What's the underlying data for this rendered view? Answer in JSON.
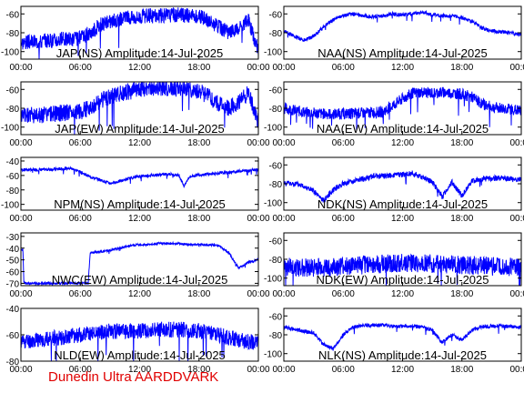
{
  "footer": "Dunedin Ultra AARDDVARK",
  "colors": {
    "signal": "#0000ff",
    "axes": "#000000",
    "footer": "#e00000"
  },
  "chart_data": [
    {
      "type": "line",
      "title": "JAP(NS) Amplitude:14-Jul-2025",
      "x_ticks": [
        "00:00",
        "06:00",
        "12:00",
        "18:00",
        "00:00"
      ],
      "y_ticks": [
        "-60",
        "-80",
        "-100"
      ],
      "ylim": [
        -108,
        -52
      ],
      "xlim": [
        0,
        24
      ],
      "grid": false,
      "series": [
        {
          "x": [
            0,
            2,
            4,
            6,
            7,
            8,
            9,
            10,
            11,
            12,
            13,
            14,
            15,
            16,
            17,
            18,
            19,
            20,
            21,
            22,
            23,
            24
          ],
          "y": [
            -90,
            -89,
            -87,
            -86,
            -80,
            -72,
            -68,
            -66,
            -64,
            -63,
            -62,
            -62,
            -61,
            -61,
            -62,
            -63,
            -67,
            -74,
            -80,
            -77,
            -66,
            -100
          ],
          "noise": 8
        }
      ]
    },
    {
      "type": "line",
      "title": "NAA(NS) Amplitude:14-Jul-2025",
      "x_ticks": [
        "00:00",
        "06:00",
        "12:00",
        "18:00",
        "00:00"
      ],
      "y_ticks": [
        "-60",
        "-80",
        "-100"
      ],
      "ylim": [
        -108,
        -52
      ],
      "xlim": [
        0,
        24
      ],
      "grid": false,
      "series": [
        {
          "x": [
            0,
            1,
            2,
            3,
            4,
            5,
            6,
            7,
            8,
            9,
            10,
            11,
            12,
            13,
            14,
            15,
            16,
            17,
            18,
            19,
            20,
            21,
            22,
            23,
            24
          ],
          "y": [
            -78,
            -83,
            -88,
            -84,
            -74,
            -66,
            -62,
            -60,
            -62,
            -63,
            -62,
            -60,
            -61,
            -60,
            -58,
            -61,
            -62,
            -62,
            -64,
            -68,
            -75,
            -78,
            -79,
            -80,
            -82
          ],
          "noise": 2
        }
      ]
    },
    {
      "type": "line",
      "title": "JAP(EW) Amplitude:14-Jul-2025",
      "x_ticks": [
        "00:00",
        "06:00",
        "12:00",
        "18:00",
        "00:00"
      ],
      "y_ticks": [
        "-60",
        "-80",
        "-100"
      ],
      "ylim": [
        -108,
        -52
      ],
      "xlim": [
        0,
        24
      ],
      "grid": false,
      "series": [
        {
          "x": [
            0,
            2,
            4,
            6,
            7,
            8,
            9,
            10,
            11,
            12,
            13,
            14,
            15,
            16,
            17,
            18,
            19,
            20,
            21,
            22,
            23,
            24
          ],
          "y": [
            -88,
            -87,
            -85,
            -84,
            -79,
            -72,
            -68,
            -64,
            -62,
            -60,
            -59,
            -58,
            -58,
            -59,
            -60,
            -62,
            -68,
            -76,
            -80,
            -74,
            -63,
            -95
          ],
          "noise": 9
        }
      ]
    },
    {
      "type": "line",
      "title": "NAA(EW) Amplitude:14-Jul-2025",
      "x_ticks": [
        "00:00",
        "06:00",
        "12:00",
        "18:00",
        "00:00"
      ],
      "y_ticks": [
        "-60",
        "-80",
        "-100"
      ],
      "ylim": [
        -108,
        -52
      ],
      "xlim": [
        0,
        24
      ],
      "grid": false,
      "series": [
        {
          "x": [
            0,
            2,
            4,
            6,
            8,
            10,
            12,
            13,
            14,
            15,
            16,
            17,
            18,
            19,
            20,
            21,
            22,
            23,
            24
          ],
          "y": [
            -80,
            -84,
            -86,
            -86,
            -85,
            -84,
            -70,
            -64,
            -63,
            -64,
            -63,
            -64,
            -65,
            -68,
            -75,
            -79,
            -80,
            -81,
            -83
          ],
          "noise": 6
        }
      ]
    },
    {
      "type": "line",
      "title": "NPM(NS) Amplitude:14-Jul-2025",
      "x_ticks": [
        "00:00",
        "06:00",
        "12:00",
        "18:00",
        "00:00"
      ],
      "y_ticks": [
        "-40",
        "-60",
        "-80",
        "-100"
      ],
      "ylim": [
        -108,
        -35
      ],
      "xlim": [
        0,
        24
      ],
      "grid": false,
      "series": [
        {
          "x": [
            0,
            2,
            4,
            5,
            6,
            7,
            8,
            9,
            10,
            11,
            12,
            13,
            14,
            15,
            16,
            16.5,
            17,
            18,
            19,
            20,
            21,
            22,
            23,
            24
          ],
          "y": [
            -52,
            -52,
            -51,
            -50,
            -55,
            -62,
            -66,
            -71,
            -68,
            -64,
            -61,
            -60,
            -59,
            -58,
            -60,
            -75,
            -62,
            -59,
            -58,
            -57,
            -56,
            -54,
            -53,
            -51
          ],
          "noise": 2
        }
      ]
    },
    {
      "type": "line",
      "title": "NDK(NS) Amplitude:14-Jul-2025",
      "x_ticks": [
        "00:00",
        "06:00",
        "12:00",
        "18:00",
        "00:00"
      ],
      "y_ticks": [
        "-60",
        "-80",
        "-100"
      ],
      "ylim": [
        -108,
        -52
      ],
      "xlim": [
        0,
        24
      ],
      "grid": false,
      "series": [
        {
          "x": [
            0,
            1,
            2,
            3,
            4,
            5,
            6,
            7,
            8,
            9,
            10,
            11,
            12,
            13,
            14,
            15,
            16,
            16.5,
            17,
            18,
            19,
            20,
            21,
            22,
            23,
            24
          ],
          "y": [
            -79,
            -80,
            -82,
            -88,
            -98,
            -86,
            -80,
            -77,
            -75,
            -72,
            -72,
            -71,
            -70,
            -69,
            -73,
            -78,
            -94,
            -86,
            -78,
            -93,
            -77,
            -75,
            -74,
            -74,
            -75,
            -76
          ],
          "noise": 3
        }
      ]
    },
    {
      "type": "line",
      "title": "NWC(EW) Amplitude:14-Jul-2025",
      "x_ticks": [
        "00:00",
        "06:00",
        "12:00",
        "18:00",
        "00:00"
      ],
      "y_ticks": [
        "-30",
        "-40",
        "-50",
        "-60",
        "-70"
      ],
      "ylim": [
        -72,
        -27
      ],
      "xlim": [
        0,
        24
      ],
      "grid": false,
      "series": [
        {
          "x": [
            0,
            0.2,
            0.3,
            6.8,
            7,
            8,
            9,
            10,
            11,
            12,
            13,
            14,
            15,
            16,
            17,
            18,
            19,
            20,
            21,
            22,
            23,
            24
          ],
          "y": [
            -42,
            -41,
            -70,
            -70,
            -44,
            -43,
            -42,
            -40,
            -38,
            -37,
            -37,
            -36,
            -36,
            -36,
            -37,
            -37,
            -37,
            -38,
            -44,
            -57,
            -52,
            -50
          ],
          "noise": 1
        }
      ]
    },
    {
      "type": "line",
      "title": "NDK(EW) Amplitude:14-Jul-2025",
      "x_ticks": [
        "00:00",
        "06:00",
        "12:00",
        "18:00",
        "00:00"
      ],
      "y_ticks": [
        "-60",
        "-80",
        "-100"
      ],
      "ylim": [
        -108,
        -52
      ],
      "xlim": [
        0,
        24
      ],
      "grid": false,
      "series": [
        {
          "x": [
            0,
            2,
            4,
            6,
            8,
            10,
            12,
            14,
            16,
            18,
            20,
            22,
            24
          ],
          "y": [
            -88,
            -89,
            -89,
            -88,
            -86,
            -85,
            -84,
            -84,
            -85,
            -86,
            -87,
            -88,
            -88
          ],
          "noise": 10
        }
      ]
    },
    {
      "type": "line",
      "title": "NLD(EW) Amplitude:14-Jul-2025",
      "x_ticks": [
        "00:00",
        "06:00",
        "12:00",
        "18:00",
        "00:00"
      ],
      "y_ticks": [
        "-40",
        "-60",
        "-80"
      ],
      "ylim": [
        -80,
        -40
      ],
      "xlim": [
        0,
        24
      ],
      "grid": false,
      "series": [
        {
          "x": [
            0,
            2,
            4,
            6,
            8,
            10,
            12,
            14,
            16,
            18,
            20,
            22,
            24
          ],
          "y": [
            -65,
            -64,
            -62,
            -60,
            -58,
            -57,
            -57,
            -56,
            -56,
            -57,
            -60,
            -64,
            -66
          ],
          "noise": 6
        }
      ]
    },
    {
      "type": "line",
      "title": "NLK(NS) Amplitude:14-Jul-2025",
      "x_ticks": [
        "00:00",
        "06:00",
        "12:00",
        "18:00",
        "00:00"
      ],
      "y_ticks": [
        "-60",
        "-80",
        "-100"
      ],
      "ylim": [
        -108,
        -52
      ],
      "xlim": [
        0,
        24
      ],
      "grid": false,
      "series": [
        {
          "x": [
            0,
            1,
            2,
            3,
            4,
            5,
            6,
            7,
            8,
            9,
            10,
            11,
            12,
            13,
            14,
            15,
            16,
            17,
            18,
            19,
            20,
            21,
            22,
            23,
            24
          ],
          "y": [
            -72,
            -74,
            -76,
            -78,
            -90,
            -95,
            -80,
            -72,
            -70,
            -70,
            -70,
            -71,
            -71,
            -71,
            -72,
            -75,
            -88,
            -80,
            -86,
            -75,
            -72,
            -71,
            -71,
            -71,
            -72
          ],
          "noise": 2
        }
      ]
    }
  ]
}
